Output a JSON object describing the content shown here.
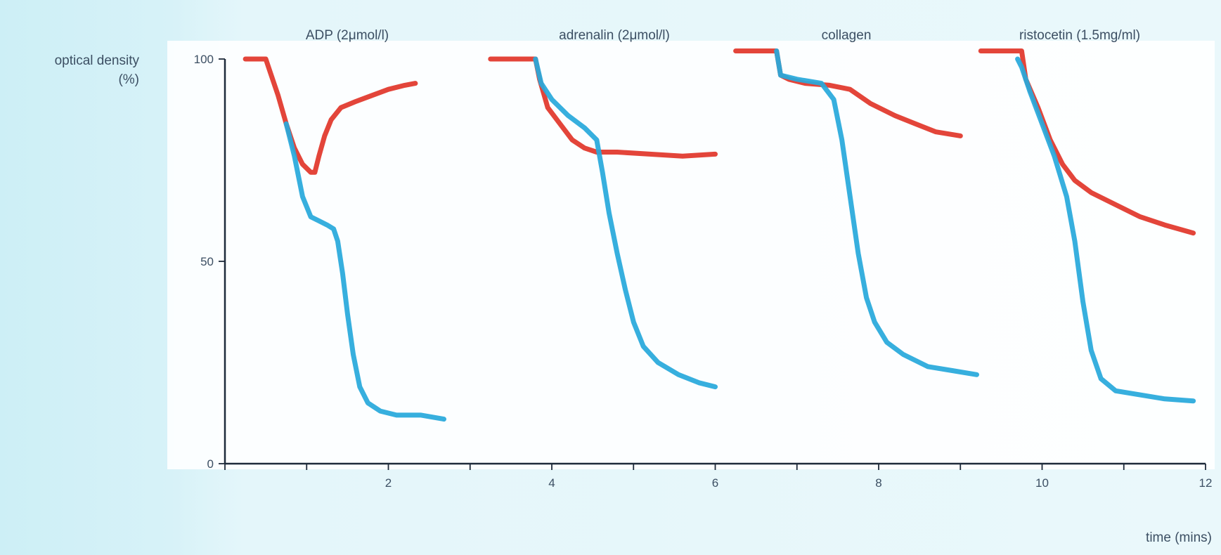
{
  "chart_data": {
    "type": "line",
    "xlabel": "time (mins)",
    "ylabel": [
      "optical density",
      "(%)"
    ],
    "xlim": [
      0,
      12
    ],
    "ylim": [
      0,
      100
    ],
    "xticks": [
      2,
      4,
      6,
      8,
      10,
      12
    ],
    "yticks": [
      0,
      50,
      100
    ],
    "grid": false,
    "panels": [
      {
        "label": "ADP (2μmol/l)",
        "series": [
          {
            "color": "#e1372b",
            "values": [
              [
                0.25,
                100
              ],
              [
                0.5,
                100
              ],
              [
                0.55,
                97
              ],
              [
                0.65,
                91
              ],
              [
                0.75,
                84
              ],
              [
                0.85,
                78
              ],
              [
                0.95,
                74
              ],
              [
                1.05,
                72
              ],
              [
                1.1,
                72
              ],
              [
                1.15,
                76
              ],
              [
                1.22,
                81
              ],
              [
                1.3,
                85
              ],
              [
                1.42,
                88
              ],
              [
                1.6,
                89.5
              ],
              [
                1.8,
                91
              ],
              [
                2.0,
                92.5
              ],
              [
                2.2,
                93.5
              ],
              [
                2.33,
                94
              ]
            ]
          },
          {
            "color": "#28a9dc",
            "values": [
              [
                0.75,
                84
              ],
              [
                0.85,
                76
              ],
              [
                0.95,
                66
              ],
              [
                1.05,
                61
              ],
              [
                1.15,
                60
              ],
              [
                1.25,
                59
              ],
              [
                1.33,
                58
              ],
              [
                1.38,
                55
              ],
              [
                1.44,
                47
              ],
              [
                1.5,
                37
              ],
              [
                1.57,
                27
              ],
              [
                1.65,
                19
              ],
              [
                1.75,
                15
              ],
              [
                1.9,
                13
              ],
              [
                2.1,
                12
              ],
              [
                2.4,
                12
              ],
              [
                2.68,
                11
              ]
            ]
          }
        ]
      },
      {
        "label": "adrenalin (2μmol/l)",
        "series": [
          {
            "color": "#e1372b",
            "values": [
              [
                3.25,
                100
              ],
              [
                3.6,
                100
              ],
              [
                3.8,
                100
              ],
              [
                3.85,
                95
              ],
              [
                3.95,
                88
              ],
              [
                4.1,
                84
              ],
              [
                4.25,
                80
              ],
              [
                4.4,
                78
              ],
              [
                4.55,
                77
              ],
              [
                4.8,
                77
              ],
              [
                5.2,
                76.5
              ],
              [
                5.6,
                76
              ],
              [
                6.0,
                76.5
              ]
            ]
          },
          {
            "color": "#28a9dc",
            "values": [
              [
                3.8,
                100
              ],
              [
                3.87,
                94
              ],
              [
                4.0,
                90
              ],
              [
                4.2,
                86
              ],
              [
                4.4,
                83
              ],
              [
                4.55,
                80
              ],
              [
                4.62,
                72
              ],
              [
                4.7,
                62
              ],
              [
                4.8,
                52
              ],
              [
                4.9,
                43
              ],
              [
                5.0,
                35
              ],
              [
                5.12,
                29
              ],
              [
                5.3,
                25
              ],
              [
                5.55,
                22
              ],
              [
                5.8,
                20
              ],
              [
                6.0,
                19
              ]
            ]
          }
        ]
      },
      {
        "label": "collagen",
        "series": [
          {
            "color": "#e1372b",
            "values": [
              [
                6.25,
                102
              ],
              [
                6.75,
                102
              ],
              [
                6.8,
                96
              ],
              [
                6.9,
                95
              ],
              [
                7.1,
                94
              ],
              [
                7.4,
                93.5
              ],
              [
                7.65,
                92.5
              ],
              [
                7.9,
                89
              ],
              [
                8.2,
                86
              ],
              [
                8.45,
                84
              ],
              [
                8.7,
                82
              ],
              [
                9.0,
                81
              ]
            ]
          },
          {
            "color": "#28a9dc",
            "values": [
              [
                6.75,
                102
              ],
              [
                6.8,
                96
              ],
              [
                7.0,
                95
              ],
              [
                7.3,
                94
              ],
              [
                7.45,
                90
              ],
              [
                7.55,
                80
              ],
              [
                7.65,
                66
              ],
              [
                7.75,
                52
              ],
              [
                7.85,
                41
              ],
              [
                7.95,
                35
              ],
              [
                8.1,
                30
              ],
              [
                8.3,
                27
              ],
              [
                8.6,
                24
              ],
              [
                8.9,
                23
              ],
              [
                9.2,
                22
              ]
            ]
          }
        ]
      },
      {
        "label": "ristocetin (1.5mg/ml)",
        "series": [
          {
            "color": "#e1372b",
            "values": [
              [
                9.25,
                102
              ],
              [
                9.75,
                102
              ],
              [
                9.8,
                95
              ],
              [
                9.95,
                88
              ],
              [
                10.1,
                80
              ],
              [
                10.25,
                74
              ],
              [
                10.4,
                70
              ],
              [
                10.6,
                67
              ],
              [
                10.9,
                64
              ],
              [
                11.2,
                61
              ],
              [
                11.5,
                59
              ],
              [
                11.85,
                57
              ]
            ]
          },
          {
            "color": "#28a9dc",
            "values": [
              [
                9.7,
                100
              ],
              [
                9.75,
                98
              ],
              [
                9.85,
                92
              ],
              [
                10.0,
                84
              ],
              [
                10.15,
                76
              ],
              [
                10.3,
                66
              ],
              [
                10.4,
                55
              ],
              [
                10.5,
                40
              ],
              [
                10.6,
                28
              ],
              [
                10.72,
                21
              ],
              [
                10.9,
                18
              ],
              [
                11.2,
                17
              ],
              [
                11.5,
                16
              ],
              [
                11.85,
                15.5
              ]
            ]
          }
        ]
      }
    ]
  }
}
